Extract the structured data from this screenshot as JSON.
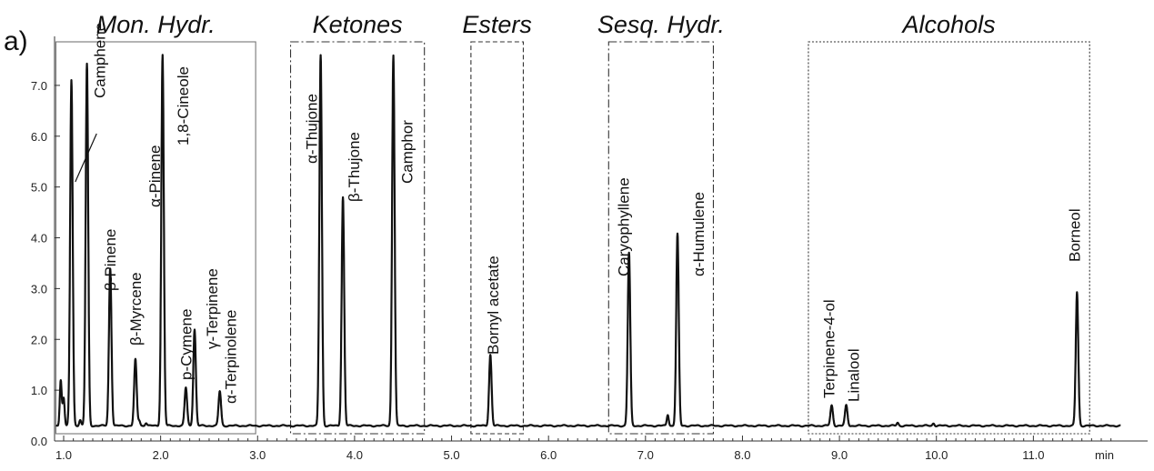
{
  "chart_data": {
    "type": "line",
    "panel_label": "a)",
    "x_unit_label": "min",
    "xlim": [
      0.9,
      11.9
    ],
    "ylim": [
      0,
      7.6
    ],
    "x_ticks": [
      "1.0",
      "2.0",
      "3.0",
      "4.0",
      "5.0",
      "6.0",
      "7.0",
      "8.0",
      "9.0",
      "10.0",
      "11.0"
    ],
    "y_ticks": [
      "0.0",
      "1.0",
      "2.0",
      "3.0",
      "4.0",
      "5.0",
      "6.0",
      "7.0"
    ],
    "baseline": 0.3,
    "groups": [
      {
        "title": "Mon. Hydr.",
        "x_range": [
          0.92,
          2.98
        ],
        "y_top": 7.65,
        "style": "solid"
      },
      {
        "title": "Ketones",
        "x_range": [
          3.34,
          4.72
        ],
        "y_top": 7.65,
        "style": "dashdot"
      },
      {
        "title": "Esters",
        "x_range": [
          5.2,
          5.74
        ],
        "y_top": 7.65,
        "style": "dashed"
      },
      {
        "title": "Sesq. Hydr.",
        "x_range": [
          6.62,
          7.7
        ],
        "y_top": 7.65,
        "style": "dashdot"
      },
      {
        "title": "Alcohols",
        "x_range": [
          8.68,
          11.58
        ],
        "y_top": 7.65,
        "style": "dotted"
      }
    ],
    "peaks": [
      {
        "name": "α-Pinene",
        "x": 1.08,
        "y": 7.1
      },
      {
        "name": "Camphene",
        "x": 1.24,
        "y": 7.42
      },
      {
        "name": "β-Pinene",
        "x": 1.48,
        "y": 3.4
      },
      {
        "name": "β-Myrcene",
        "x": 1.74,
        "y": 1.6
      },
      {
        "name": "1,8-Cineole",
        "x": 2.02,
        "y": 7.6
      },
      {
        "name": "p-Cymene",
        "x": 2.26,
        "y": 1.05
      },
      {
        "name": "γ-Terpinene",
        "x": 2.35,
        "y": 2.2
      },
      {
        "name": "α-Terpinolene",
        "x": 2.61,
        "y": 0.98
      },
      {
        "name": "α-Thujone",
        "x": 3.65,
        "y": 7.6
      },
      {
        "name": "β-Thujone",
        "x": 3.88,
        "y": 4.8
      },
      {
        "name": "Camphor",
        "x": 4.4,
        "y": 7.6
      },
      {
        "name": "Bornyl acetate",
        "x": 5.4,
        "y": 1.7
      },
      {
        "name": "Caryophyllene",
        "x": 6.83,
        "y": 3.7
      },
      {
        "name": "α-Humulene",
        "x": 7.33,
        "y": 4.07
      },
      {
        "name": "Terpinene-4-ol",
        "x": 8.92,
        "y": 0.7
      },
      {
        "name": "Linalool",
        "x": 9.07,
        "y": 0.7
      },
      {
        "name": "Borneol",
        "x": 11.45,
        "y": 2.93
      }
    ],
    "minor_peaks": [
      {
        "x": 0.97,
        "y": 1.2
      },
      {
        "x": 1.0,
        "y": 0.85
      },
      {
        "x": 1.17,
        "y": 0.42
      },
      {
        "x": 1.78,
        "y": 0.4
      },
      {
        "x": 1.85,
        "y": 0.36
      },
      {
        "x": 7.23,
        "y": 0.52
      },
      {
        "x": 9.6,
        "y": 0.36
      },
      {
        "x": 9.97,
        "y": 0.35
      }
    ]
  }
}
